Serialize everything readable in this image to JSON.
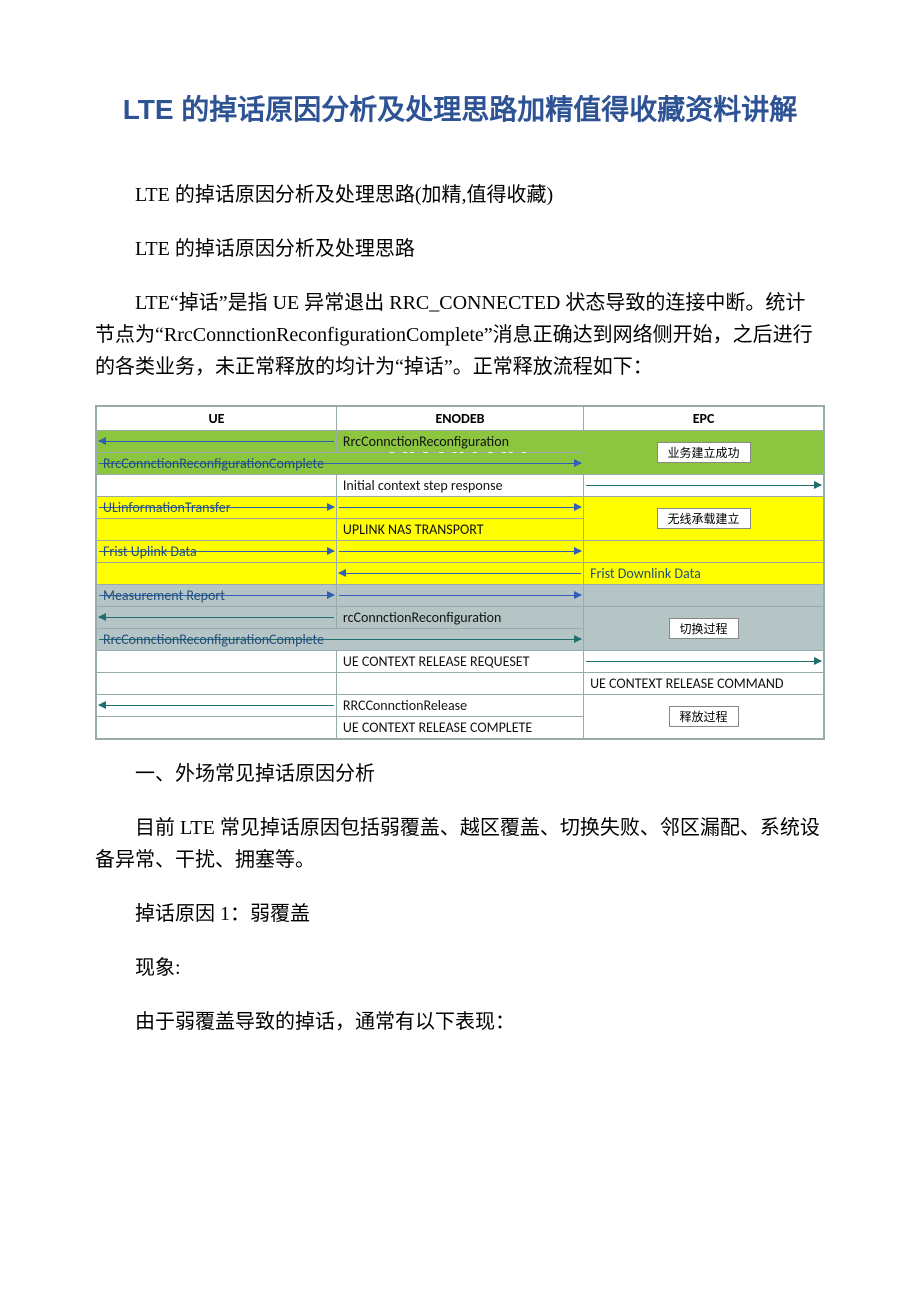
{
  "doc": {
    "title": "LTE 的掉话原因分析及处理思路加精值得收藏资料讲解",
    "p1": "LTE 的掉话原因分析及处理思路(加精,值得收藏)",
    "p2": "LTE 的掉话原因分析及处理思路",
    "p3": "LTE“掉话”是指 UE 异常退出 RRC_CONNECTED 状态导致的连接中断。统计节点为“RrcConnctionReconfigurationComplete”消息正确达到网络侧开始，之后进行的各类业务，未正常释放的均计为“掉话”。正常释放流程如下：",
    "p4": "一、外场常见掉话原因分析",
    "p5": "目前 LTE 常见掉话原因包括弱覆盖、越区覆盖、切换失败、邻区漏配、系统设备异常、干扰、拥塞等。",
    "p6": "掉话原因 1：弱覆盖",
    "p7": "现象:",
    "p8": "由于弱覆盖导致的掉话，通常有以下表现："
  },
  "seq": {
    "headers": {
      "ue": "UE",
      "enodeb": "ENODEB",
      "epc": "EPC"
    },
    "colors": {
      "green": "#8cc63f",
      "yellow": "#ffff00",
      "white": "#ffffff",
      "gray": "#b5c4c4",
      "arrow_blue": "#2f5fb8",
      "arrow_teal": "#1f6f6f",
      "text_blue": "#1f4e79",
      "text_black": "#111111",
      "border": "#8aa0a0"
    },
    "watermark": "WWW",
    "tags": {
      "establish": "业务建立成功",
      "bearer": "无线承载建立",
      "handover": "切换过程",
      "release": "释放过程"
    },
    "rows": [
      {
        "bg": "green",
        "col": "mid-left",
        "dir": "left",
        "text": "RrcConnctionReconfiguration",
        "arrow": "blue",
        "tag": "establish",
        "tag_rowspan": 2
      },
      {
        "bg": "green",
        "col": "left-wide",
        "dir": "right",
        "text": "RrcConnctionReconfigurationComplete",
        "arrow": "blue",
        "style": "blue"
      },
      {
        "bg": "white",
        "col": "mid-right",
        "dir": "right",
        "text": "Initial context step response",
        "arrow": "teal"
      },
      {
        "bg": "yellow",
        "col": "left",
        "dir": "right",
        "text": "ULinformationTransfer",
        "arrow": "blue",
        "style": "blue",
        "tag": "bearer",
        "tag_rowspan": 2
      },
      {
        "bg": "yellow",
        "col": "mid-right",
        "dir": "right",
        "text": "UPLINK NAS TRANSPORT",
        "arrow": "teal"
      },
      {
        "bg": "yellow",
        "col": "left",
        "dir": "right",
        "text": "Frist Uplink Data",
        "arrow": "blue",
        "style": "blue"
      },
      {
        "bg": "yellow",
        "col": "right",
        "dir": "left",
        "text": "Frist Downlink Data",
        "arrow": "blue",
        "style": "blue",
        "span_left_empty": true
      },
      {
        "bg": "gray",
        "col": "left",
        "dir": "right",
        "text": "Measurement Report",
        "arrow": "blue",
        "style": "blue"
      },
      {
        "bg": "gray",
        "col": "mid-left",
        "dir": "left",
        "text": "rcConnctionReconfiguration",
        "arrow": "teal",
        "tag": "handover",
        "tag_rowspan": 2
      },
      {
        "bg": "gray",
        "col": "left-wide",
        "dir": "right",
        "text": "RrcConnctionReconfigurationComplete",
        "arrow": "teal",
        "style": "blue"
      },
      {
        "bg": "white",
        "col": "mid-right",
        "dir": "right",
        "text": "UE CONTEXT RELEASE REQUESET",
        "arrow": "teal"
      },
      {
        "bg": "white",
        "col": "right",
        "dir": "left",
        "text": "UE CONTEXT RELEASE COMMAND",
        "arrow": "none",
        "span_left_empty": true
      },
      {
        "bg": "white",
        "col": "mid-left",
        "dir": "left",
        "text": "RRCConnctionRelease",
        "arrow": "teal",
        "tag": "release",
        "tag_rowspan": 2
      },
      {
        "bg": "white",
        "col": "mid-right",
        "dir": "right",
        "text": "UE CONTEXT RELEASE COMPLETE",
        "arrow": "teal"
      }
    ]
  }
}
